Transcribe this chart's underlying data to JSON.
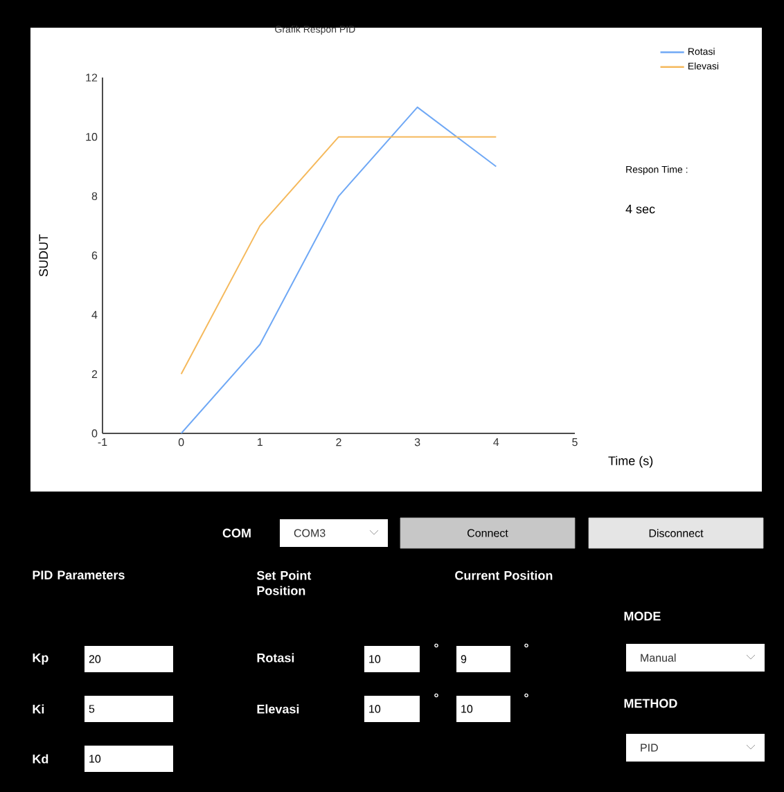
{
  "chart_data": {
    "type": "line",
    "title": "Grafik Respon PID",
    "xlabel": "Time (s)",
    "ylabel": "SUDUT",
    "x": [
      0,
      1,
      2,
      3,
      4
    ],
    "series": [
      {
        "name": "Rotasi",
        "color": "#6fa8f5",
        "values": [
          0,
          3,
          8,
          11,
          9
        ]
      },
      {
        "name": "Elevasi",
        "color": "#f5b95c",
        "values": [
          2,
          7,
          10,
          10,
          10
        ]
      }
    ],
    "xlim": [
      -1,
      5
    ],
    "xticks": [
      -1,
      0,
      1,
      2,
      3,
      4,
      5
    ],
    "ylim": [
      0,
      12
    ],
    "yticks": [
      0,
      2,
      4,
      6,
      8,
      10,
      12
    ],
    "legend": "top right",
    "marker": "none",
    "line_style": "solid",
    "annotations": [
      "Respon Time :",
      "4 sec",
      "COM",
      "COM3",
      "Connect",
      "Disconnect",
      "PID Parameters",
      "Set Point Position",
      "Current Position",
      "MODE",
      "Kp",
      "20",
      "Ki",
      "5",
      "Kd",
      "10",
      "Rotasi",
      "10",
      "°",
      "9",
      "°",
      "Elevasi",
      "10",
      "°",
      "10",
      "°",
      "Manual",
      "METHOD",
      "PID"
    ]
  }
}
